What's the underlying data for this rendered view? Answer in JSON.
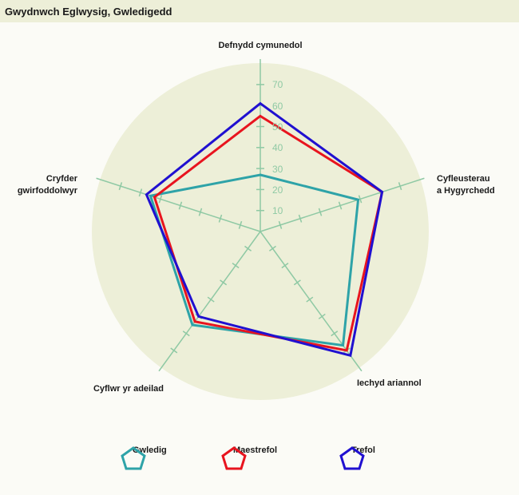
{
  "header": {
    "title": "Gwydnwch Eglwysig, Gwledigedd"
  },
  "colors": {
    "background": "#fbfbf6",
    "header_bg": "#edefd8",
    "plot_bg": "#edefd8",
    "axis": "#8fc9a4",
    "gwledig": "#2ea3a8",
    "maestrefol": "#e8141e",
    "trefol": "#2010d0"
  },
  "legend": {
    "items": [
      {
        "label": "Gwledig",
        "color": "#2ea3a8"
      },
      {
        "label": "Maestrefol",
        "color": "#e8141e"
      },
      {
        "label": "Trefol",
        "color": "#2010d0"
      }
    ]
  },
  "chart_data": {
    "type": "radar",
    "title": "Gwydnwch Eglwysig, Gwledigedd",
    "categories": [
      "Defnydd cymunedol",
      "Cyfleusterau a Hygyrchedd",
      "Iechyd ariannol",
      "Cyflwr yr adeilad",
      "Cryfder gwirfoddolwyr"
    ],
    "radial_ticks": [
      10,
      20,
      30,
      40,
      50,
      60,
      70
    ],
    "rlim": [
      0,
      80
    ],
    "grid": false,
    "legend_position": "bottom",
    "series": [
      {
        "name": "Gwledig",
        "values": [
          27,
          49,
          67,
          55,
          55
        ]
      },
      {
        "name": "Maestrefol",
        "values": [
          55,
          61,
          70,
          53,
          53
        ]
      },
      {
        "name": "Trefol",
        "values": [
          61,
          61,
          73,
          50,
          57
        ]
      }
    ]
  },
  "axis_labels": {
    "top": "Defnydd cymunedol",
    "right_line1": "Cyfleusterau",
    "right_line2": "a Hygyrchedd",
    "lower_right": "Iechyd ariannol",
    "lower_left": "Cyflwr yr adeilad",
    "left_line1": "Cryfder",
    "left_line2": "gwirfoddolwyr"
  },
  "tick_labels": [
    "10",
    "20",
    "30",
    "40",
    "50",
    "60",
    "70"
  ]
}
